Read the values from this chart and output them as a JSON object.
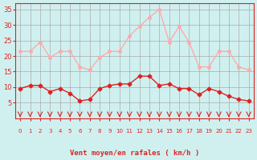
{
  "x": [
    0,
    1,
    2,
    3,
    4,
    5,
    6,
    7,
    8,
    9,
    10,
    11,
    12,
    13,
    14,
    15,
    16,
    17,
    18,
    19,
    20,
    21,
    22,
    23
  ],
  "rafales": [
    21.5,
    21.5,
    24.5,
    19.5,
    21.5,
    21.5,
    16.5,
    15.5,
    19.5,
    21.5,
    21.5,
    26.5,
    29.5,
    32.5,
    35.0,
    24.5,
    29.5,
    24.5,
    16.5,
    16.5,
    21.5,
    21.5,
    16.5,
    15.5
  ],
  "moyen": [
    9.5,
    10.5,
    10.5,
    8.5,
    9.5,
    8.0,
    5.5,
    6.0,
    9.5,
    10.5,
    11.0,
    11.0,
    13.5,
    13.5,
    10.5,
    11.0,
    9.5,
    9.5,
    7.5,
    9.5,
    8.5,
    7.0,
    6.0,
    5.5
  ],
  "rafales_color": "#ffaaaa",
  "moyen_color": "#dd2222",
  "bg_color": "#d0f0f0",
  "grid_color": "#aaaaaa",
  "xlabel": "Vent moyen/en rafales ( km/h )",
  "ylim": [
    0,
    37
  ],
  "yticks": [
    5,
    10,
    15,
    20,
    25,
    30,
    35
  ],
  "xlim": [
    -0.5,
    23.5
  ],
  "xticks": [
    0,
    1,
    2,
    3,
    4,
    5,
    6,
    7,
    8,
    9,
    10,
    11,
    12,
    13,
    14,
    15,
    16,
    17,
    18,
    19,
    20,
    21,
    22,
    23
  ]
}
